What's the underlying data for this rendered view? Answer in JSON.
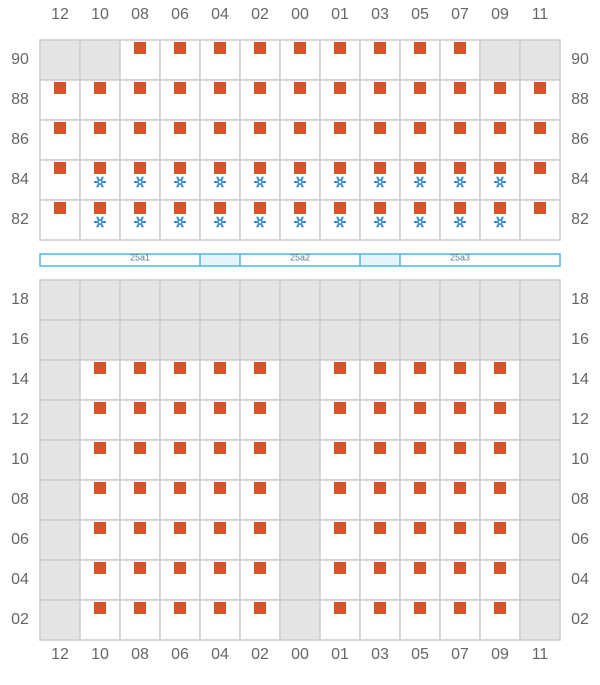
{
  "columns": [
    "12",
    "10",
    "08",
    "06",
    "04",
    "02",
    "00",
    "01",
    "03",
    "05",
    "07",
    "09",
    "11"
  ],
  "deck": {
    "rows": [
      {
        "label": "90",
        "cells": [
          "blocked",
          "blocked",
          "container",
          "container",
          "container",
          "container",
          "container",
          "container",
          "container",
          "container",
          "container",
          "blocked",
          "blocked"
        ]
      },
      {
        "label": "88",
        "cells": [
          "container",
          "container",
          "container",
          "container",
          "container",
          "container",
          "container",
          "container",
          "container",
          "container",
          "container",
          "container",
          "container"
        ]
      },
      {
        "label": "86",
        "cells": [
          "container",
          "container",
          "container",
          "container",
          "container",
          "container",
          "container",
          "container",
          "container",
          "container",
          "container",
          "container",
          "container"
        ]
      },
      {
        "label": "84",
        "cells": [
          "container",
          "reefer",
          "reefer",
          "reefer",
          "reefer",
          "reefer",
          "reefer",
          "reefer",
          "reefer",
          "reefer",
          "reefer",
          "reefer",
          "container"
        ]
      },
      {
        "label": "82",
        "cells": [
          "container",
          "reefer",
          "reefer",
          "reefer",
          "reefer",
          "reefer",
          "reefer",
          "reefer",
          "reefer",
          "reefer",
          "reefer",
          "reefer",
          "container"
        ]
      }
    ]
  },
  "hatches": [
    "25a1",
    "25a2",
    "25a3"
  ],
  "hold": {
    "rows": [
      {
        "label": "18",
        "cells": [
          "blocked",
          "blocked",
          "blocked",
          "blocked",
          "blocked",
          "blocked",
          "blocked",
          "blocked",
          "blocked",
          "blocked",
          "blocked",
          "blocked",
          "blocked"
        ]
      },
      {
        "label": "16",
        "cells": [
          "blocked",
          "blocked",
          "blocked",
          "blocked",
          "blocked",
          "blocked",
          "blocked",
          "blocked",
          "blocked",
          "blocked",
          "blocked",
          "blocked",
          "blocked"
        ]
      },
      {
        "label": "14",
        "cells": [
          "blocked",
          "container",
          "container",
          "container",
          "container",
          "container",
          "blocked",
          "container",
          "container",
          "container",
          "container",
          "container",
          "blocked"
        ]
      },
      {
        "label": "12",
        "cells": [
          "blocked",
          "container",
          "container",
          "container",
          "container",
          "container",
          "blocked",
          "container",
          "container",
          "container",
          "container",
          "container",
          "blocked"
        ]
      },
      {
        "label": "10",
        "cells": [
          "blocked",
          "container",
          "container",
          "container",
          "container",
          "container",
          "blocked",
          "container",
          "container",
          "container",
          "container",
          "container",
          "blocked"
        ]
      },
      {
        "label": "08",
        "cells": [
          "blocked",
          "container",
          "container",
          "container",
          "container",
          "container",
          "blocked",
          "container",
          "container",
          "container",
          "container",
          "container",
          "blocked"
        ]
      },
      {
        "label": "06",
        "cells": [
          "blocked",
          "container",
          "container",
          "container",
          "container",
          "container",
          "blocked",
          "container",
          "container",
          "container",
          "container",
          "container",
          "blocked"
        ]
      },
      {
        "label": "04",
        "cells": [
          "blocked",
          "container",
          "container",
          "container",
          "container",
          "container",
          "blocked",
          "container",
          "container",
          "container",
          "container",
          "container",
          "blocked"
        ]
      },
      {
        "label": "02",
        "cells": [
          "blocked",
          "container",
          "container",
          "container",
          "container",
          "container",
          "blocked",
          "container",
          "container",
          "container",
          "container",
          "container",
          "blocked"
        ]
      }
    ]
  }
}
